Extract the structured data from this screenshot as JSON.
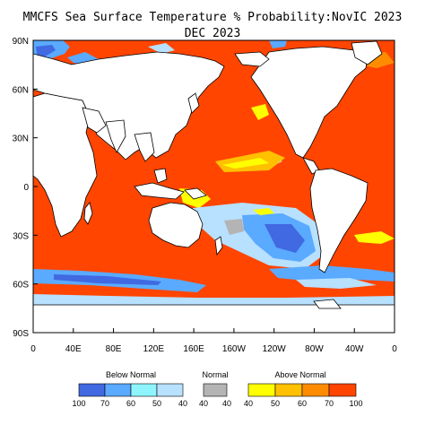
{
  "title": "MMCFS Sea Surface Temperature % Probability:NovIC 2023",
  "subtitle": "DEC 2023",
  "map": {
    "lat_labels": [
      "90N",
      "60N",
      "30N",
      "0",
      "30S",
      "60S",
      "90S"
    ],
    "lon_labels": [
      "0",
      "40E",
      "80E",
      "120E",
      "160E",
      "160W",
      "120W",
      "80W",
      "40W",
      "0"
    ],
    "colors": {
      "above_70": "#ff4500",
      "above_60": "#ff8c00",
      "above_50": "#ffc000",
      "above_40": "#ffff00",
      "normal": "#b4b4b4",
      "below_40": "#b8e0ff",
      "below_50": "#8ef5ff",
      "below_60": "#5aaaff",
      "below_70": "#4169e1",
      "land": "#ffffff"
    }
  },
  "legend": {
    "below": {
      "title": "Below Normal",
      "ticks": [
        "100",
        "70",
        "60",
        "50",
        "40"
      ],
      "colors": [
        "#4169e1",
        "#5aaaff",
        "#8ef5ff",
        "#b8e0ff"
      ]
    },
    "normal": {
      "title": "Normal",
      "ticks": [
        "40",
        "40"
      ],
      "color": "#b4b4b4"
    },
    "above": {
      "title": "Above Normal",
      "ticks": [
        "40",
        "50",
        "60",
        "70",
        "100"
      ],
      "colors": [
        "#ffff00",
        "#ffc000",
        "#ff8c00",
        "#ff4500"
      ]
    }
  }
}
